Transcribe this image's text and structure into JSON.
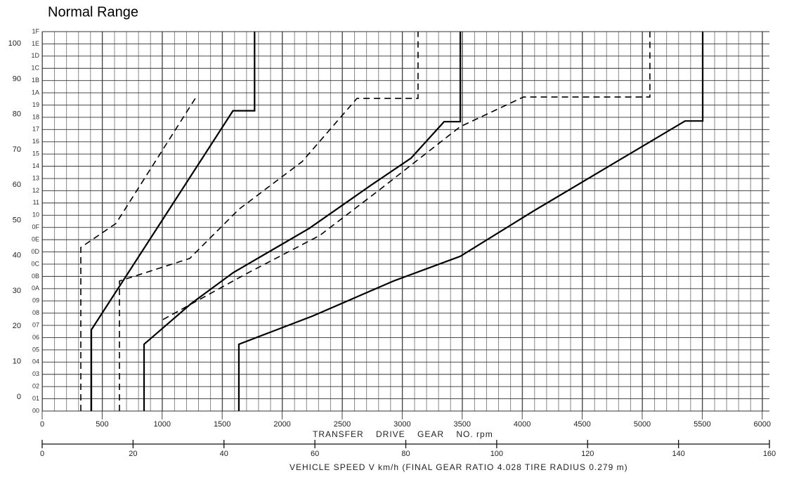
{
  "chart_data": {
    "type": "line",
    "title": "Normal Range",
    "x_label": "TRANSFER    DRIVE    GEAR    NO. rpm",
    "x2_label": "VEHICLE SPEED V km/h (FINAL GEAR RATIO 4.028 TIRE RADIUS 0.279 m)",
    "xlim": [
      0,
      6060
    ],
    "xticks": [
      0,
      500,
      1000,
      1500,
      2000,
      2500,
      3000,
      3500,
      4000,
      4500,
      5000,
      5500,
      6000
    ],
    "x2lim": [
      0,
      160
    ],
    "x2ticks": [
      0,
      20,
      40,
      60,
      80,
      100,
      120,
      140,
      160
    ],
    "ylim": [
      -4,
      103.4
    ],
    "yticks": [
      0,
      10,
      20,
      30,
      40,
      50,
      60,
      70,
      80,
      90,
      100
    ],
    "y2lim": [
      0,
      31
    ],
    "y2ticks": [
      {
        "value": 0,
        "label": "00"
      },
      {
        "value": 1,
        "label": "01"
      },
      {
        "value": 2,
        "label": "02"
      },
      {
        "value": 3,
        "label": "03"
      },
      {
        "value": 4,
        "label": "04"
      },
      {
        "value": 5,
        "label": "05"
      },
      {
        "value": 6,
        "label": "06"
      },
      {
        "value": 7,
        "label": "07"
      },
      {
        "value": 8,
        "label": "08"
      },
      {
        "value": 9,
        "label": "09"
      },
      {
        "value": 10,
        "label": "0A"
      },
      {
        "value": 11,
        "label": "0B"
      },
      {
        "value": 12,
        "label": "0C"
      },
      {
        "value": 13,
        "label": "0D"
      },
      {
        "value": 14,
        "label": "0E"
      },
      {
        "value": 15,
        "label": "0F"
      },
      {
        "value": 16,
        "label": "10"
      },
      {
        "value": 17,
        "label": "11"
      },
      {
        "value": 18,
        "label": "12"
      },
      {
        "value": 19,
        "label": "13"
      },
      {
        "value": 20,
        "label": "14"
      },
      {
        "value": 21,
        "label": "15"
      },
      {
        "value": 22,
        "label": "16"
      },
      {
        "value": 23,
        "label": "17"
      },
      {
        "value": 24,
        "label": "18"
      },
      {
        "value": 25,
        "label": "19"
      },
      {
        "value": 26,
        "label": "1A"
      },
      {
        "value": 27,
        "label": "1B"
      },
      {
        "value": 28,
        "label": "1C"
      },
      {
        "value": 29,
        "label": "1D"
      },
      {
        "value": 30,
        "label": "1E"
      },
      {
        "value": 31,
        "label": "1F"
      }
    ],
    "grid": true,
    "series": [
      {
        "color": "#000",
        "style": "solid",
        "x": [
          410,
          410,
          1590,
          1770,
          1770
        ],
        "values": [
          -4,
          19,
          81,
          81,
          103.4
        ]
      },
      {
        "color": "#000",
        "style": "dashed",
        "x": [
          322,
          322,
          615,
          1276
        ],
        "values": [
          -4,
          42.3,
          49.1,
          84.5
        ]
      },
      {
        "color": "#000",
        "style": "solid",
        "x": [
          849,
          849,
          1241,
          1593,
          2225,
          2752,
          3074,
          3349,
          3484,
          3484
        ],
        "values": [
          -4,
          14.9,
          26.4,
          35.2,
          47.7,
          60.2,
          67.6,
          77.9,
          77.9,
          103.4
        ]
      },
      {
        "color": "#000",
        "style": "dashed",
        "x": [
          644,
          644,
          1230,
          1639,
          2166,
          2623,
          3132,
          3132
        ],
        "values": [
          -4,
          32.8,
          39.2,
          53.1,
          66.6,
          84.5,
          84.5,
          103.4
        ]
      },
      {
        "color": "#000",
        "style": "solid",
        "x": [
          1639,
          1639,
          2254,
          2927,
          3484,
          4098,
          5357,
          5504,
          5504
        ],
        "values": [
          -4,
          14.9,
          22.9,
          32.8,
          39.8,
          52.7,
          78.1,
          78.1,
          103.4
        ]
      },
      {
        "color": "#000",
        "style": "dashed",
        "x": [
          1007,
          1698,
          2313,
          2810,
          3484,
          4011,
          5064,
          5064
        ],
        "values": [
          21.9,
          34.8,
          45.7,
          58.6,
          76.5,
          84.9,
          84.9,
          103.4
        ]
      }
    ]
  }
}
